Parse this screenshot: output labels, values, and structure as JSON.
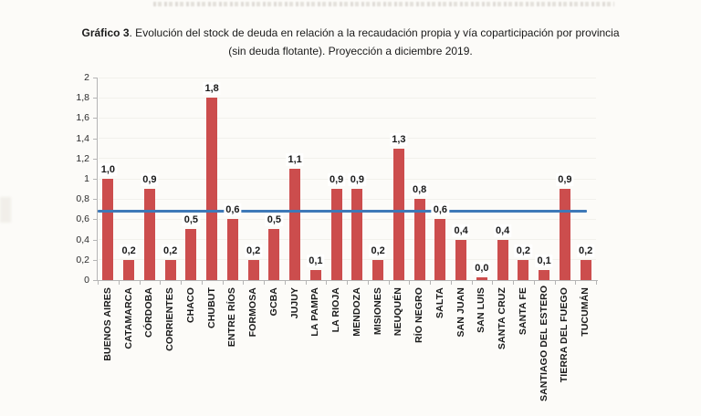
{
  "page": {
    "background": "#FCFBF8"
  },
  "title": {
    "prefix": "Gráfico 3",
    "rest": ". Evolución del stock de deuda en relación a la recaudación propia y vía coparticipación por provincia (sin deuda flotante). Proyección a diciembre 2019."
  },
  "chart_data": {
    "type": "bar",
    "title": "Gráfico 3. Evolución del stock de deuda en relación a la recaudación propia y vía coparticipación por provincia (sin deuda flotante). Proyección a diciembre 2019.",
    "categories": [
      "BUENOS AIRES",
      "CATAMARCA",
      "CÓRDOBA",
      "CORRIENTES",
      "CHACO",
      "CHUBUT",
      "ENTRE RÍOS",
      "FORMOSA",
      "GCBA",
      "JUJUY",
      "LA PAMPA",
      "LA RIOJA",
      "MENDOZA",
      "MISIONES",
      "NEUQUÉN",
      "RÍO NEGRO",
      "SALTA",
      "SAN JUAN",
      "SAN LUIS",
      "SANTA CRUZ",
      "SANTA FE",
      "SANTIAGO DEL ESTERO",
      "TIERRA DEL FUEGO",
      "TUCUMÁN"
    ],
    "values": [
      1.0,
      0.2,
      0.9,
      0.2,
      0.5,
      1.8,
      0.6,
      0.2,
      0.5,
      1.1,
      0.1,
      0.9,
      0.9,
      0.2,
      1.3,
      0.8,
      0.6,
      0.4,
      0.0,
      0.4,
      0.2,
      0.1,
      0.9,
      0.2
    ],
    "value_labels": [
      "1,0",
      "0,2",
      "0,9",
      "0,2",
      "0,5",
      "1,8",
      "0,6",
      "0,2",
      "0,5",
      "1,1",
      "0,1",
      "0,9",
      "0,9",
      "0,2",
      "1,3",
      "0,8",
      "0,6",
      "0,4",
      "0,0",
      "0,4",
      "0,2",
      "0,1",
      "0,9",
      "0,2"
    ],
    "ylim": [
      0,
      2
    ],
    "ytick_labels": [
      "0",
      "0,2",
      "0,4",
      "0,6",
      "0,8",
      "1",
      "1,2",
      "1,4",
      "1,6",
      "1,8",
      "2"
    ],
    "reference_line": {
      "value": 0.68
    },
    "grid": true,
    "legend": null,
    "colors": {
      "bar": "#CC4D4D",
      "reference_line": "#3E79B8",
      "axis": "#B5B5B5",
      "grid_faint": "#EFEDE8",
      "label_text": "#1A1A1A"
    }
  }
}
